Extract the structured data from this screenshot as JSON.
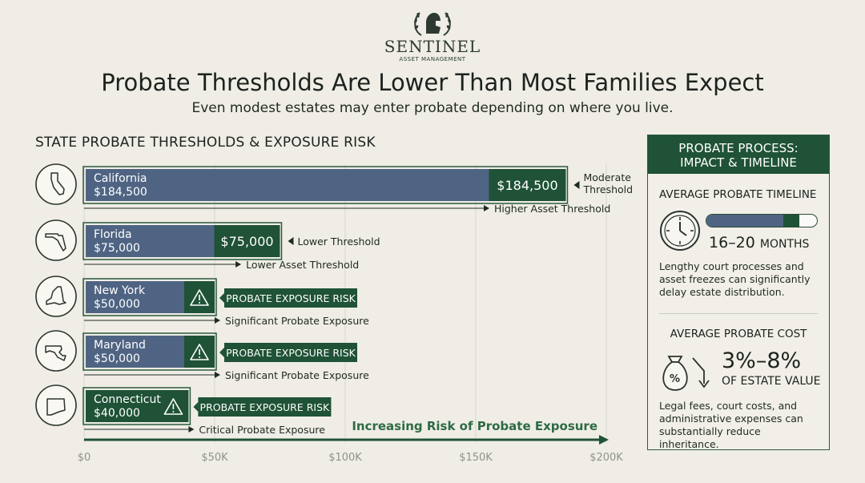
{
  "brand": {
    "name": "SENTINEL",
    "tagline": "ASSET MANAGEMENT"
  },
  "title": "Probate Thresholds Are Lower Than Most Families Expect",
  "subtitle": "Even modest estates may enter probate depending on where you live.",
  "colors": {
    "bar_blue": "#4f6483",
    "dark_green": "#1f5236",
    "background": "#efede6"
  },
  "chart_data": {
    "type": "bar",
    "orientation": "horizontal",
    "title": "STATE PROBATE THRESHOLDS & EXPOSURE RISK",
    "categories": [
      "California",
      "Florida",
      "New York",
      "Maryland",
      "Connecticut"
    ],
    "values": [
      184500,
      75000,
      50000,
      50000,
      40000
    ],
    "value_labels": [
      "$184,500",
      "$75,000",
      "$50,000",
      "$50,000",
      "$40,000"
    ],
    "xlim": [
      0,
      200000
    ],
    "x_ticks": [
      0,
      50000,
      100000,
      150000,
      200000
    ],
    "x_tick_labels": [
      "$0",
      "$50K",
      "$100K",
      "$150K",
      "$200K"
    ],
    "grid": true,
    "row_notes": [
      "Higher Asset Threshold",
      "Lower Asset Threshold",
      "Significant Probate Exposure",
      "Significant Probate Exposure",
      "Critical Probate Exposure"
    ],
    "side_notes": [
      "Moderate Threshold",
      "Lower Threshold",
      "",
      "",
      ""
    ],
    "risk_badges": [
      "",
      "",
      "PROBATE EXPOSURE RISK",
      "PROBATE EXPOSURE RISK",
      "PROBATE EXPOSURE RISK"
    ],
    "trend_label": "Increasing Risk of Probate Exposure"
  },
  "panel": {
    "title_line1": "PROBATE PROCESS:",
    "title_line2": "IMPACT & TIMELINE",
    "timeline_heading": "AVERAGE PROBATE TIMELINE",
    "timeline_value": "16–20",
    "timeline_unit": "MONTHS",
    "timeline_progress": 0.85,
    "timeline_progress_marker": 0.7,
    "timeline_description": "Lengthy court processes and asset freezes can significantly delay estate distribution.",
    "cost_heading": "AVERAGE PROBATE COST",
    "cost_value": "3%–8%",
    "cost_unit": "OF ESTATE VALUE",
    "cost_description": "Legal fees, court costs, and administrative expenses can substantially reduce inheritance."
  }
}
